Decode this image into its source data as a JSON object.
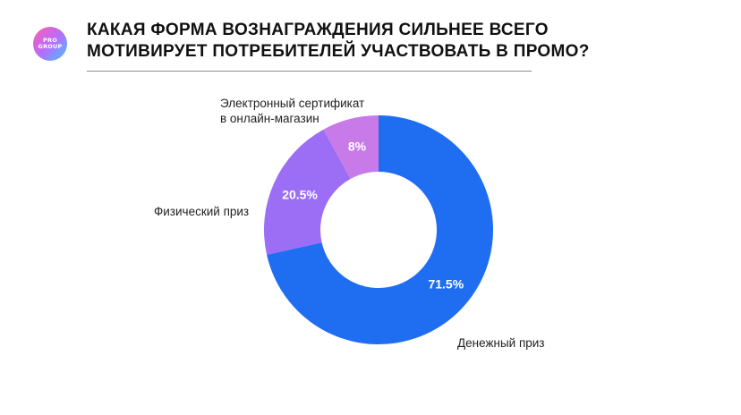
{
  "logo": {
    "text": "PRO\nGROUP"
  },
  "header": {
    "title_line1": "КАКАЯ ФОРМА ВОЗНАГРАЖДЕНИЯ СИЛЬНЕЕ ВСЕГО",
    "title_line2": "МОТИВИРУЕТ ПОТРЕБИТЕЛЕЙ УЧАСТВОВАТЬ В ПРОМО?"
  },
  "chart_data": {
    "type": "pie",
    "title": "КАКАЯ ФОРМА ВОЗНАГРАЖДЕНИЯ СИЛЬНЕЕ ВСЕГО МОТИВИРУЕТ ПОТРЕБИТЕЛЕЙ УЧАСТВОВАТЬ В ПРОМО?",
    "donut": true,
    "slices": [
      {
        "label": "Денежный приз",
        "value": 71.5,
        "value_label": "71.5%",
        "color": "#1f6ef2"
      },
      {
        "label": "Физический приз",
        "value": 20.5,
        "value_label": "20.5%",
        "color": "#9b6ef5"
      },
      {
        "label_line1": "Электронный сертификат",
        "label_line2": "в онлайн-магазин",
        "value": 8,
        "value_label": "8%",
        "color": "#c77ae8"
      }
    ],
    "value_label_color": "#ffffff"
  }
}
